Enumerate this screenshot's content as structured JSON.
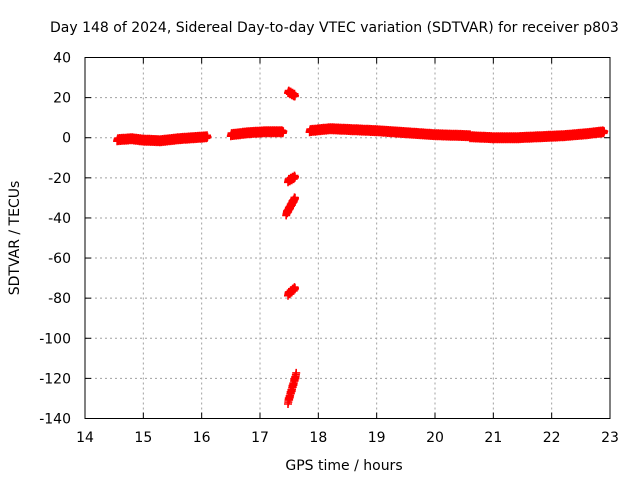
{
  "chart_data": {
    "type": "scatter",
    "title": "Day 148 of 2024, Sidereal Day-to-day VTEC variation (SDTVAR) for receiver p803",
    "xlabel": "GPS time / hours",
    "ylabel": "SDTVAR / TECUs",
    "xlim": [
      14,
      23
    ],
    "ylim": [
      -140,
      40
    ],
    "xticks": [
      "14",
      "15",
      "16",
      "17",
      "18",
      "19",
      "20",
      "21",
      "22",
      "23"
    ],
    "yticks": [
      "40",
      "20",
      "0",
      "-20",
      "-40",
      "-60",
      "-80",
      "-100",
      "-120",
      "-140"
    ],
    "grid": true,
    "marker": "plus",
    "color": "#ff0000",
    "series": [
      {
        "name": "SDTVAR",
        "segments": [
          {
            "x_range": [
              14.55,
              16.1
            ],
            "y_path": [
              [
                14.55,
                -1
              ],
              [
                14.8,
                -0.5
              ],
              [
                15.0,
                -1.2
              ],
              [
                15.3,
                -1.5
              ],
              [
                15.6,
                -0.5
              ],
              [
                15.85,
                0
              ],
              [
                16.1,
                0.5
              ]
            ]
          },
          {
            "x_range": [
              16.5,
              17.4
            ],
            "y_path": [
              [
                16.5,
                1.5
              ],
              [
                16.8,
                2.5
              ],
              [
                17.1,
                3
              ],
              [
                17.4,
                3
              ]
            ]
          },
          {
            "x_range": [
              17.85,
              20.6
            ],
            "y_path": [
              [
                17.85,
                3.5
              ],
              [
                18.2,
                4.5
              ],
              [
                18.6,
                4
              ],
              [
                19.0,
                3.5
              ],
              [
                19.5,
                2.5
              ],
              [
                20.0,
                1.5
              ],
              [
                20.6,
                1
              ]
            ]
          },
          {
            "x_range": [
              20.6,
              22.9
            ],
            "y_path": [
              [
                20.6,
                0.5
              ],
              [
                21.0,
                0
              ],
              [
                21.4,
                0
              ],
              [
                21.8,
                0.5
              ],
              [
                22.2,
                1
              ],
              [
                22.6,
                2
              ],
              [
                22.9,
                3
              ]
            ]
          },
          {
            "x_range": [
              17.48,
              17.6
            ],
            "y_path": [
              [
                17.48,
                23
              ],
              [
                17.6,
                21
              ]
            ]
          },
          {
            "x_range": [
              17.48,
              17.6
            ],
            "y_path": [
              [
                17.48,
                -21.5
              ],
              [
                17.6,
                -19.5
              ]
            ]
          },
          {
            "x_range": [
              17.45,
              17.6
            ],
            "y_path": [
              [
                17.45,
                -38
              ],
              [
                17.6,
                -30
              ]
            ]
          },
          {
            "x_range": [
              17.48,
              17.6
            ],
            "y_path": [
              [
                17.48,
                -78
              ],
              [
                17.6,
                -75
              ]
            ]
          },
          {
            "x_range": [
              17.48,
              17.62
            ],
            "y_path": [
              [
                17.48,
                -132
              ],
              [
                17.62,
                -118
              ]
            ]
          }
        ]
      }
    ]
  }
}
